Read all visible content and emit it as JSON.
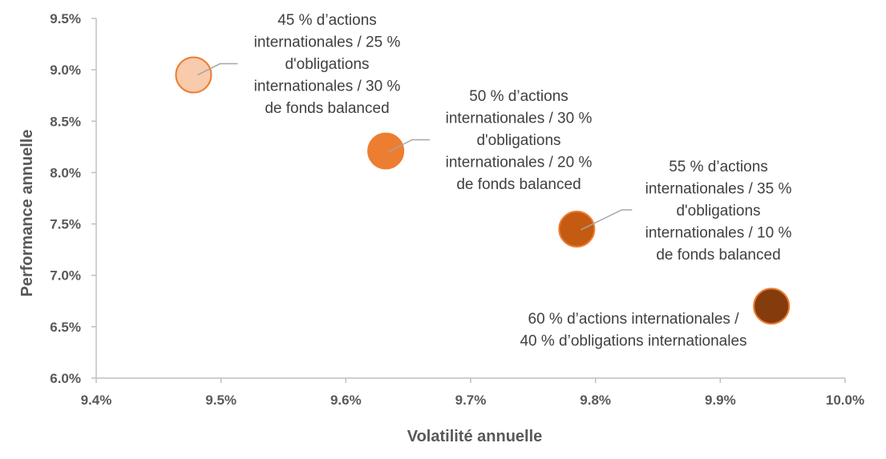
{
  "chart_data": {
    "type": "scatter",
    "subtype": "bubble",
    "title": "",
    "xlabel": "Volatilité annuelle",
    "ylabel": "Performance annuelle",
    "xlim": [
      9.4,
      10.0
    ],
    "ylim": [
      6.0,
      9.5
    ],
    "xticks": [
      "9.4%",
      "9.5%",
      "9.6%",
      "9.7%",
      "9.8%",
      "9.9%",
      "10.0%"
    ],
    "yticks": [
      "6.0%",
      "6.5%",
      "7.0%",
      "7.5%",
      "8.0%",
      "8.5%",
      "9.0%",
      "9.5%"
    ],
    "grid": false,
    "points": [
      {
        "x": 9.478,
        "y": 8.95,
        "color": "#F8CBAD",
        "stroke": "#ED7D31",
        "label": [
          "45 % d’actions",
          "internationales / 25 %",
          "d'obligations",
          "internationales / 30 %",
          "de fonds balanced"
        ]
      },
      {
        "x": 9.632,
        "y": 8.21,
        "color": "#ED7D31",
        "stroke": "#ED7D31",
        "label": [
          "50 % d’actions",
          "internationales / 30 %",
          "d'obligations",
          "internationales / 20 %",
          "de fonds balanced"
        ]
      },
      {
        "x": 9.785,
        "y": 7.45,
        "color": "#C55A11",
        "stroke": "#ED7D31",
        "label": [
          "55 % d’actions",
          "internationales / 35 %",
          "d'obligations",
          "internationales / 10 %",
          "de fonds balanced"
        ]
      },
      {
        "x": 9.941,
        "y": 6.7,
        "color": "#843C0C",
        "stroke": "#ED7D31",
        "label": [
          "60 % d’actions internationales /",
          "40 % d’obligations internationales"
        ]
      }
    ]
  }
}
